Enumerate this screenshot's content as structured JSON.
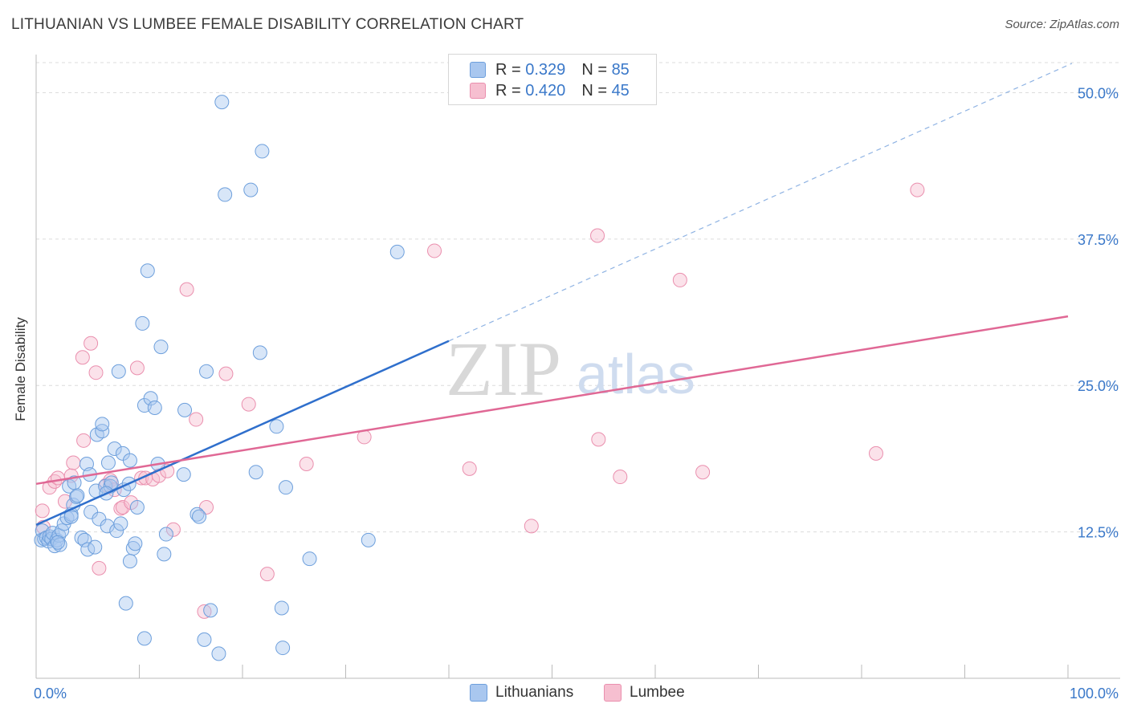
{
  "title": "LITHUANIAN VS LUMBEE FEMALE DISABILITY CORRELATION CHART",
  "source": "Source: ZipAtlas.com",
  "watermark": {
    "zip": "ZIP",
    "atlas": "atlas"
  },
  "legend": {
    "r_label": "R =",
    "n_label": "N =",
    "series": [
      {
        "name": "Lithuanians",
        "r": "0.329",
        "n": "85",
        "fill": "#a9c7ef",
        "stroke": "#6d9fdc"
      },
      {
        "name": "Lumbee",
        "r": "0.420",
        "n": "45",
        "fill": "#f6bfd0",
        "stroke": "#ea8fae"
      }
    ]
  },
  "colors": {
    "blue_line": "#2f6fcc",
    "pink_line": "#e06895",
    "axis_text": "#3a78c9",
    "grid": "#dddddd"
  },
  "chart_data": {
    "type": "scatter",
    "title": "LITHUANIAN VS LUMBEE FEMALE DISABILITY CORRELATION CHART",
    "xlabel": "",
    "ylabel": "Female Disability",
    "xlim": [
      0,
      100
    ],
    "ylim": [
      0,
      52.5
    ],
    "x_tick_labels": [
      "0.0%",
      "100.0%"
    ],
    "y_ticks": [
      12.5,
      25.0,
      37.5,
      50.0
    ],
    "y_tick_labels": [
      "12.5%",
      "25.0%",
      "37.5%",
      "50.0%"
    ],
    "grid": true,
    "series": [
      {
        "name": "Lithuanians",
        "r": 0.329,
        "n": 85,
        "points": [
          [
            0.5,
            11.8
          ],
          [
            0.6,
            12.6
          ],
          [
            0.8,
            11.9
          ],
          [
            1.0,
            12.0
          ],
          [
            1.2,
            11.7
          ],
          [
            1.3,
            12.1
          ],
          [
            1.5,
            11.9
          ],
          [
            1.6,
            12.4
          ],
          [
            1.8,
            11.3
          ],
          [
            2.0,
            11.8
          ],
          [
            2.2,
            12.2
          ],
          [
            2.3,
            11.4
          ],
          [
            2.5,
            12.6
          ],
          [
            2.7,
            13.2
          ],
          [
            3.0,
            13.7
          ],
          [
            3.2,
            16.4
          ],
          [
            3.4,
            14.0
          ],
          [
            3.6,
            14.8
          ],
          [
            3.7,
            16.7
          ],
          [
            3.9,
            15.5
          ],
          [
            4.0,
            15.6
          ],
          [
            4.4,
            12.0
          ],
          [
            4.7,
            11.8
          ],
          [
            4.9,
            18.3
          ],
          [
            5.0,
            11.0
          ],
          [
            5.2,
            17.4
          ],
          [
            5.3,
            14.2
          ],
          [
            5.7,
            11.2
          ],
          [
            5.8,
            16.0
          ],
          [
            5.9,
            20.8
          ],
          [
            6.1,
            13.6
          ],
          [
            6.4,
            21.1
          ],
          [
            6.4,
            21.7
          ],
          [
            6.7,
            16.4
          ],
          [
            6.9,
            13.0
          ],
          [
            7.0,
            18.4
          ],
          [
            7.2,
            16.4
          ],
          [
            7.3,
            16.7
          ],
          [
            7.6,
            19.6
          ],
          [
            7.8,
            12.6
          ],
          [
            8.0,
            26.2
          ],
          [
            8.2,
            13.2
          ],
          [
            8.4,
            19.2
          ],
          [
            8.5,
            16.1
          ],
          [
            8.7,
            6.4
          ],
          [
            9.0,
            16.6
          ],
          [
            9.1,
            18.6
          ],
          [
            9.4,
            11.1
          ],
          [
            9.6,
            11.5
          ],
          [
            9.8,
            14.6
          ],
          [
            10.3,
            30.3
          ],
          [
            10.5,
            23.3
          ],
          [
            10.8,
            34.8
          ],
          [
            11.1,
            23.9
          ],
          [
            11.5,
            23.1
          ],
          [
            11.8,
            18.3
          ],
          [
            12.1,
            28.3
          ],
          [
            12.4,
            10.6
          ],
          [
            12.6,
            12.3
          ],
          [
            14.3,
            17.4
          ],
          [
            14.4,
            22.9
          ],
          [
            15.6,
            14.0
          ],
          [
            15.8,
            13.8
          ],
          [
            16.3,
            3.3
          ],
          [
            16.5,
            26.2
          ],
          [
            16.9,
            5.8
          ],
          [
            17.7,
            2.1
          ],
          [
            18.0,
            49.2
          ],
          [
            18.3,
            41.3
          ],
          [
            20.8,
            41.7
          ],
          [
            21.3,
            17.6
          ],
          [
            21.7,
            27.8
          ],
          [
            21.9,
            45.0
          ],
          [
            23.3,
            21.5
          ],
          [
            23.8,
            6.0
          ],
          [
            23.9,
            2.6
          ],
          [
            24.2,
            16.3
          ],
          [
            26.5,
            10.2
          ],
          [
            32.2,
            11.8
          ],
          [
            35.0,
            36.4
          ],
          [
            2.1,
            11.6
          ],
          [
            3.4,
            13.8
          ],
          [
            9.1,
            10.0
          ],
          [
            10.5,
            3.4
          ],
          [
            6.8,
            15.8
          ]
        ]
      },
      {
        "name": "Lumbee",
        "r": 0.42,
        "n": 45,
        "points": [
          [
            0.6,
            14.3
          ],
          [
            0.7,
            12.9
          ],
          [
            1.3,
            16.3
          ],
          [
            1.8,
            16.8
          ],
          [
            2.1,
            17.1
          ],
          [
            2.8,
            15.1
          ],
          [
            3.4,
            17.3
          ],
          [
            3.6,
            18.4
          ],
          [
            4.5,
            27.4
          ],
          [
            4.6,
            20.3
          ],
          [
            5.3,
            28.6
          ],
          [
            5.8,
            26.1
          ],
          [
            6.1,
            9.4
          ],
          [
            6.8,
            16.5
          ],
          [
            7.2,
            16.9
          ],
          [
            7.6,
            16.1
          ],
          [
            8.2,
            14.5
          ],
          [
            8.4,
            14.6
          ],
          [
            9.2,
            15.0
          ],
          [
            9.8,
            26.5
          ],
          [
            10.2,
            17.1
          ],
          [
            10.6,
            17.1
          ],
          [
            11.3,
            17.0
          ],
          [
            11.9,
            17.3
          ],
          [
            12.7,
            17.7
          ],
          [
            13.3,
            12.7
          ],
          [
            14.6,
            33.2
          ],
          [
            15.5,
            22.1
          ],
          [
            16.3,
            5.7
          ],
          [
            16.5,
            14.6
          ],
          [
            18.4,
            26.0
          ],
          [
            20.6,
            23.4
          ],
          [
            22.4,
            8.9
          ],
          [
            26.2,
            18.3
          ],
          [
            31.8,
            20.6
          ],
          [
            38.6,
            36.5
          ],
          [
            42.0,
            17.9
          ],
          [
            48.0,
            13.0
          ],
          [
            54.4,
            37.8
          ],
          [
            54.5,
            20.4
          ],
          [
            56.6,
            17.2
          ],
          [
            62.4,
            34.0
          ],
          [
            64.6,
            17.6
          ],
          [
            81.4,
            19.2
          ],
          [
            85.4,
            41.7
          ]
        ]
      }
    ],
    "trend_lines": [
      {
        "series": "Lithuanians",
        "x0": 0,
        "y0": 13.1,
        "x1": 40.0,
        "y1": 28.8,
        "dashed_extension_to_x": 100
      },
      {
        "series": "Lumbee",
        "x0": 0,
        "y0": 16.6,
        "x1": 100,
        "y1": 30.9
      }
    ]
  }
}
